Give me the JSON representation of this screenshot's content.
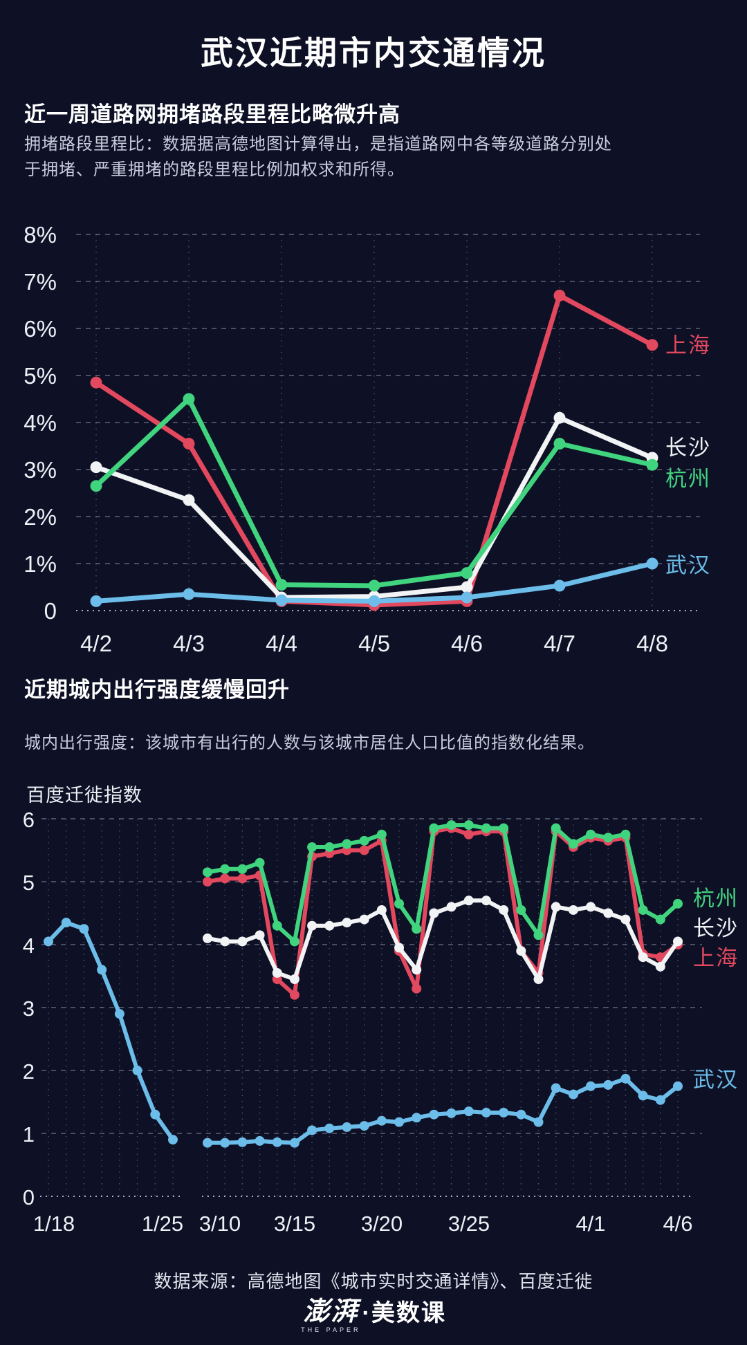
{
  "page": {
    "title": "武汉近期市内交通情况",
    "background": "#0e1126"
  },
  "section1": {
    "heading": "近一周道路网拥堵路段里程比略微升高",
    "desc_lines": [
      "拥堵路段里程比：数据据高德地图计算得出，是指道路网中各等级道路分别处",
      "于拥堵、严重拥堵的路段里程比例加权求和所得。"
    ]
  },
  "section2": {
    "heading": "近期城内出行强度缓慢回升",
    "desc": "城内出行强度：该城市有出行的人数与该城市居住人口比值的指数化结果。"
  },
  "colors": {
    "shanghai": "#e2485e",
    "changsha": "#f2f3f5",
    "hangzhou": "#41d47f",
    "wuhan": "#6cbde9",
    "grid": "rgba(205,213,232,0.42)"
  },
  "chart_data": [
    {
      "id": "congestion-ratio",
      "type": "line",
      "title": "近一周道路网拥堵路段里程比略微升高",
      "ylabel": "",
      "unit": "%",
      "ylim": [
        0,
        8
      ],
      "y_ticks": [
        "8%",
        "7%",
        "6%",
        "5%",
        "4%",
        "3%",
        "2%",
        "1%",
        "0"
      ],
      "x_ticks": [
        "4/2",
        "4/3",
        "4/4",
        "4/5",
        "4/6",
        "4/7",
        "4/8"
      ],
      "legend_position": "right",
      "grid": true,
      "segments": [
        {
          "categories": [
            "4/2",
            "4/3",
            "4/4",
            "4/5",
            "4/6",
            "4/7",
            "4/8"
          ],
          "series": [
            {
              "key": "shanghai",
              "name": "上海",
              "color": "#e2485e",
              "values": [
                4.85,
                3.55,
                0.2,
                0.12,
                0.2,
                6.7,
                5.65
              ]
            },
            {
              "key": "changsha",
              "name": "长沙",
              "color": "#f2f3f5",
              "values": [
                3.05,
                2.35,
                0.28,
                0.3,
                0.5,
                4.1,
                3.25
              ]
            },
            {
              "key": "hangzhou",
              "name": "杭州",
              "color": "#41d47f",
              "values": [
                2.65,
                4.5,
                0.55,
                0.53,
                0.8,
                3.55,
                3.1
              ]
            },
            {
              "key": "wuhan",
              "name": "武汉",
              "color": "#6cbde9",
              "values": [
                0.2,
                0.35,
                0.22,
                0.2,
                0.28,
                0.53,
                1.0
              ]
            }
          ]
        }
      ]
    },
    {
      "id": "travel-intensity",
      "type": "line",
      "title": "近期城内出行强度缓慢回升",
      "ylabel": "百度迁徙指数",
      "ylim": [
        0,
        6
      ],
      "y_ticks": [
        "6",
        "5",
        "4",
        "3",
        "2",
        "1",
        "0"
      ],
      "x_ticks": [
        "1/18",
        "1/25",
        "3/10",
        "3/15",
        "3/20",
        "3/25",
        "4/1",
        "4/6"
      ],
      "legend_position": "right",
      "grid": true,
      "axis_break": "between 1/25 and 3/10",
      "segments": [
        {
          "x_range": [
            "1/18",
            "1/25"
          ],
          "points": 8,
          "series": [
            {
              "key": "wuhan",
              "name": "武汉",
              "color": "#6cbde9",
              "values": [
                4.05,
                4.35,
                4.25,
                3.6,
                2.9,
                2.0,
                1.3,
                0.9
              ]
            }
          ]
        },
        {
          "x_range": [
            "3/10",
            "4/6"
          ],
          "points": 28,
          "series": [
            {
              "key": "shanghai",
              "name": "上海",
              "color": "#e2485e",
              "values": [
                5.0,
                5.05,
                5.05,
                5.1,
                3.45,
                3.2,
                5.4,
                5.45,
                5.5,
                5.5,
                5.65,
                3.9,
                3.3,
                5.8,
                5.85,
                5.75,
                5.8,
                5.8,
                3.9,
                3.55,
                5.8,
                5.55,
                5.7,
                5.65,
                5.7,
                3.85,
                3.8,
                4.0
              ]
            },
            {
              "key": "changsha",
              "name": "长沙",
              "color": "#f2f3f5",
              "values": [
                4.1,
                4.05,
                4.05,
                4.15,
                3.55,
                3.45,
                4.3,
                4.3,
                4.35,
                4.4,
                4.55,
                3.95,
                3.6,
                4.5,
                4.6,
                4.7,
                4.7,
                4.55,
                3.9,
                3.45,
                4.6,
                4.55,
                4.6,
                4.5,
                4.4,
                3.8,
                3.65,
                4.05
              ]
            },
            {
              "key": "hangzhou",
              "name": "杭州",
              "color": "#41d47f",
              "values": [
                5.15,
                5.2,
                5.2,
                5.3,
                4.3,
                4.05,
                5.55,
                5.55,
                5.6,
                5.65,
                5.75,
                4.65,
                4.25,
                5.85,
                5.9,
                5.9,
                5.85,
                5.85,
                4.55,
                4.15,
                5.85,
                5.6,
                5.75,
                5.7,
                5.75,
                4.55,
                4.4,
                4.65
              ]
            },
            {
              "key": "wuhan",
              "name": "武汉",
              "color": "#6cbde9",
              "values": [
                0.85,
                0.85,
                0.86,
                0.88,
                0.86,
                0.85,
                1.05,
                1.08,
                1.1,
                1.12,
                1.2,
                1.18,
                1.25,
                1.3,
                1.32,
                1.35,
                1.33,
                1.33,
                1.3,
                1.18,
                1.72,
                1.62,
                1.75,
                1.77,
                1.87,
                1.6,
                1.53,
                1.75
              ]
            }
          ]
        }
      ]
    }
  ],
  "footer": {
    "source": "数据来源：高德地图《城市实时交通详情》、百度迁徙",
    "logo_zh": "澎湃",
    "logo_en": "THE PAPER",
    "logo_suffix": "·美数课"
  }
}
